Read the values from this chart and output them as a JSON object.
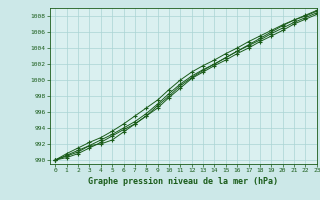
{
  "title": "Graphe pression niveau de la mer (hPa)",
  "background_color": "#cce8e8",
  "plot_bg_color": "#daf0f0",
  "grid_color": "#aad4d4",
  "line_color": "#1a5c1a",
  "marker_color": "#1a5c1a",
  "xlim": [
    -0.5,
    23
  ],
  "ylim": [
    989.5,
    1009
  ],
  "yticks": [
    990,
    992,
    994,
    996,
    998,
    1000,
    1002,
    1004,
    1006,
    1008
  ],
  "xticks": [
    0,
    1,
    2,
    3,
    4,
    5,
    6,
    7,
    8,
    9,
    10,
    11,
    12,
    13,
    14,
    15,
    16,
    17,
    18,
    19,
    20,
    21,
    22,
    23
  ],
  "series": [
    [
      990.0,
      990.6,
      991.2,
      991.8,
      992.0,
      992.5,
      993.5,
      994.5,
      995.5,
      996.5,
      997.8,
      999.0,
      1000.2,
      1001.0,
      1001.8,
      1002.5,
      1003.3,
      1004.0,
      1004.8,
      1005.5,
      1006.2,
      1007.0,
      1007.6,
      1008.2
    ],
    [
      990.0,
      990.5,
      991.0,
      991.8,
      992.5,
      993.2,
      994.0,
      994.8,
      995.8,
      997.0,
      998.3,
      999.5,
      1000.5,
      1001.3,
      1002.0,
      1002.8,
      1003.6,
      1004.3,
      1005.0,
      1005.8,
      1006.5,
      1007.2,
      1007.8,
      1008.4
    ],
    [
      990.0,
      990.8,
      991.5,
      992.2,
      992.8,
      993.6,
      994.5,
      995.5,
      996.5,
      997.5,
      998.8,
      1000.0,
      1001.0,
      1001.8,
      1002.5,
      1003.3,
      1004.0,
      1004.8,
      1005.5,
      1006.2,
      1006.9,
      1007.5,
      1008.1,
      1008.7
    ],
    [
      990.0,
      990.3,
      990.8,
      991.5,
      992.2,
      993.0,
      993.8,
      994.5,
      995.5,
      996.8,
      998.0,
      999.3,
      1000.3,
      1001.2,
      1002.0,
      1002.8,
      1003.6,
      1004.4,
      1005.2,
      1006.0,
      1006.8,
      1007.5,
      1008.0,
      1008.6
    ]
  ]
}
